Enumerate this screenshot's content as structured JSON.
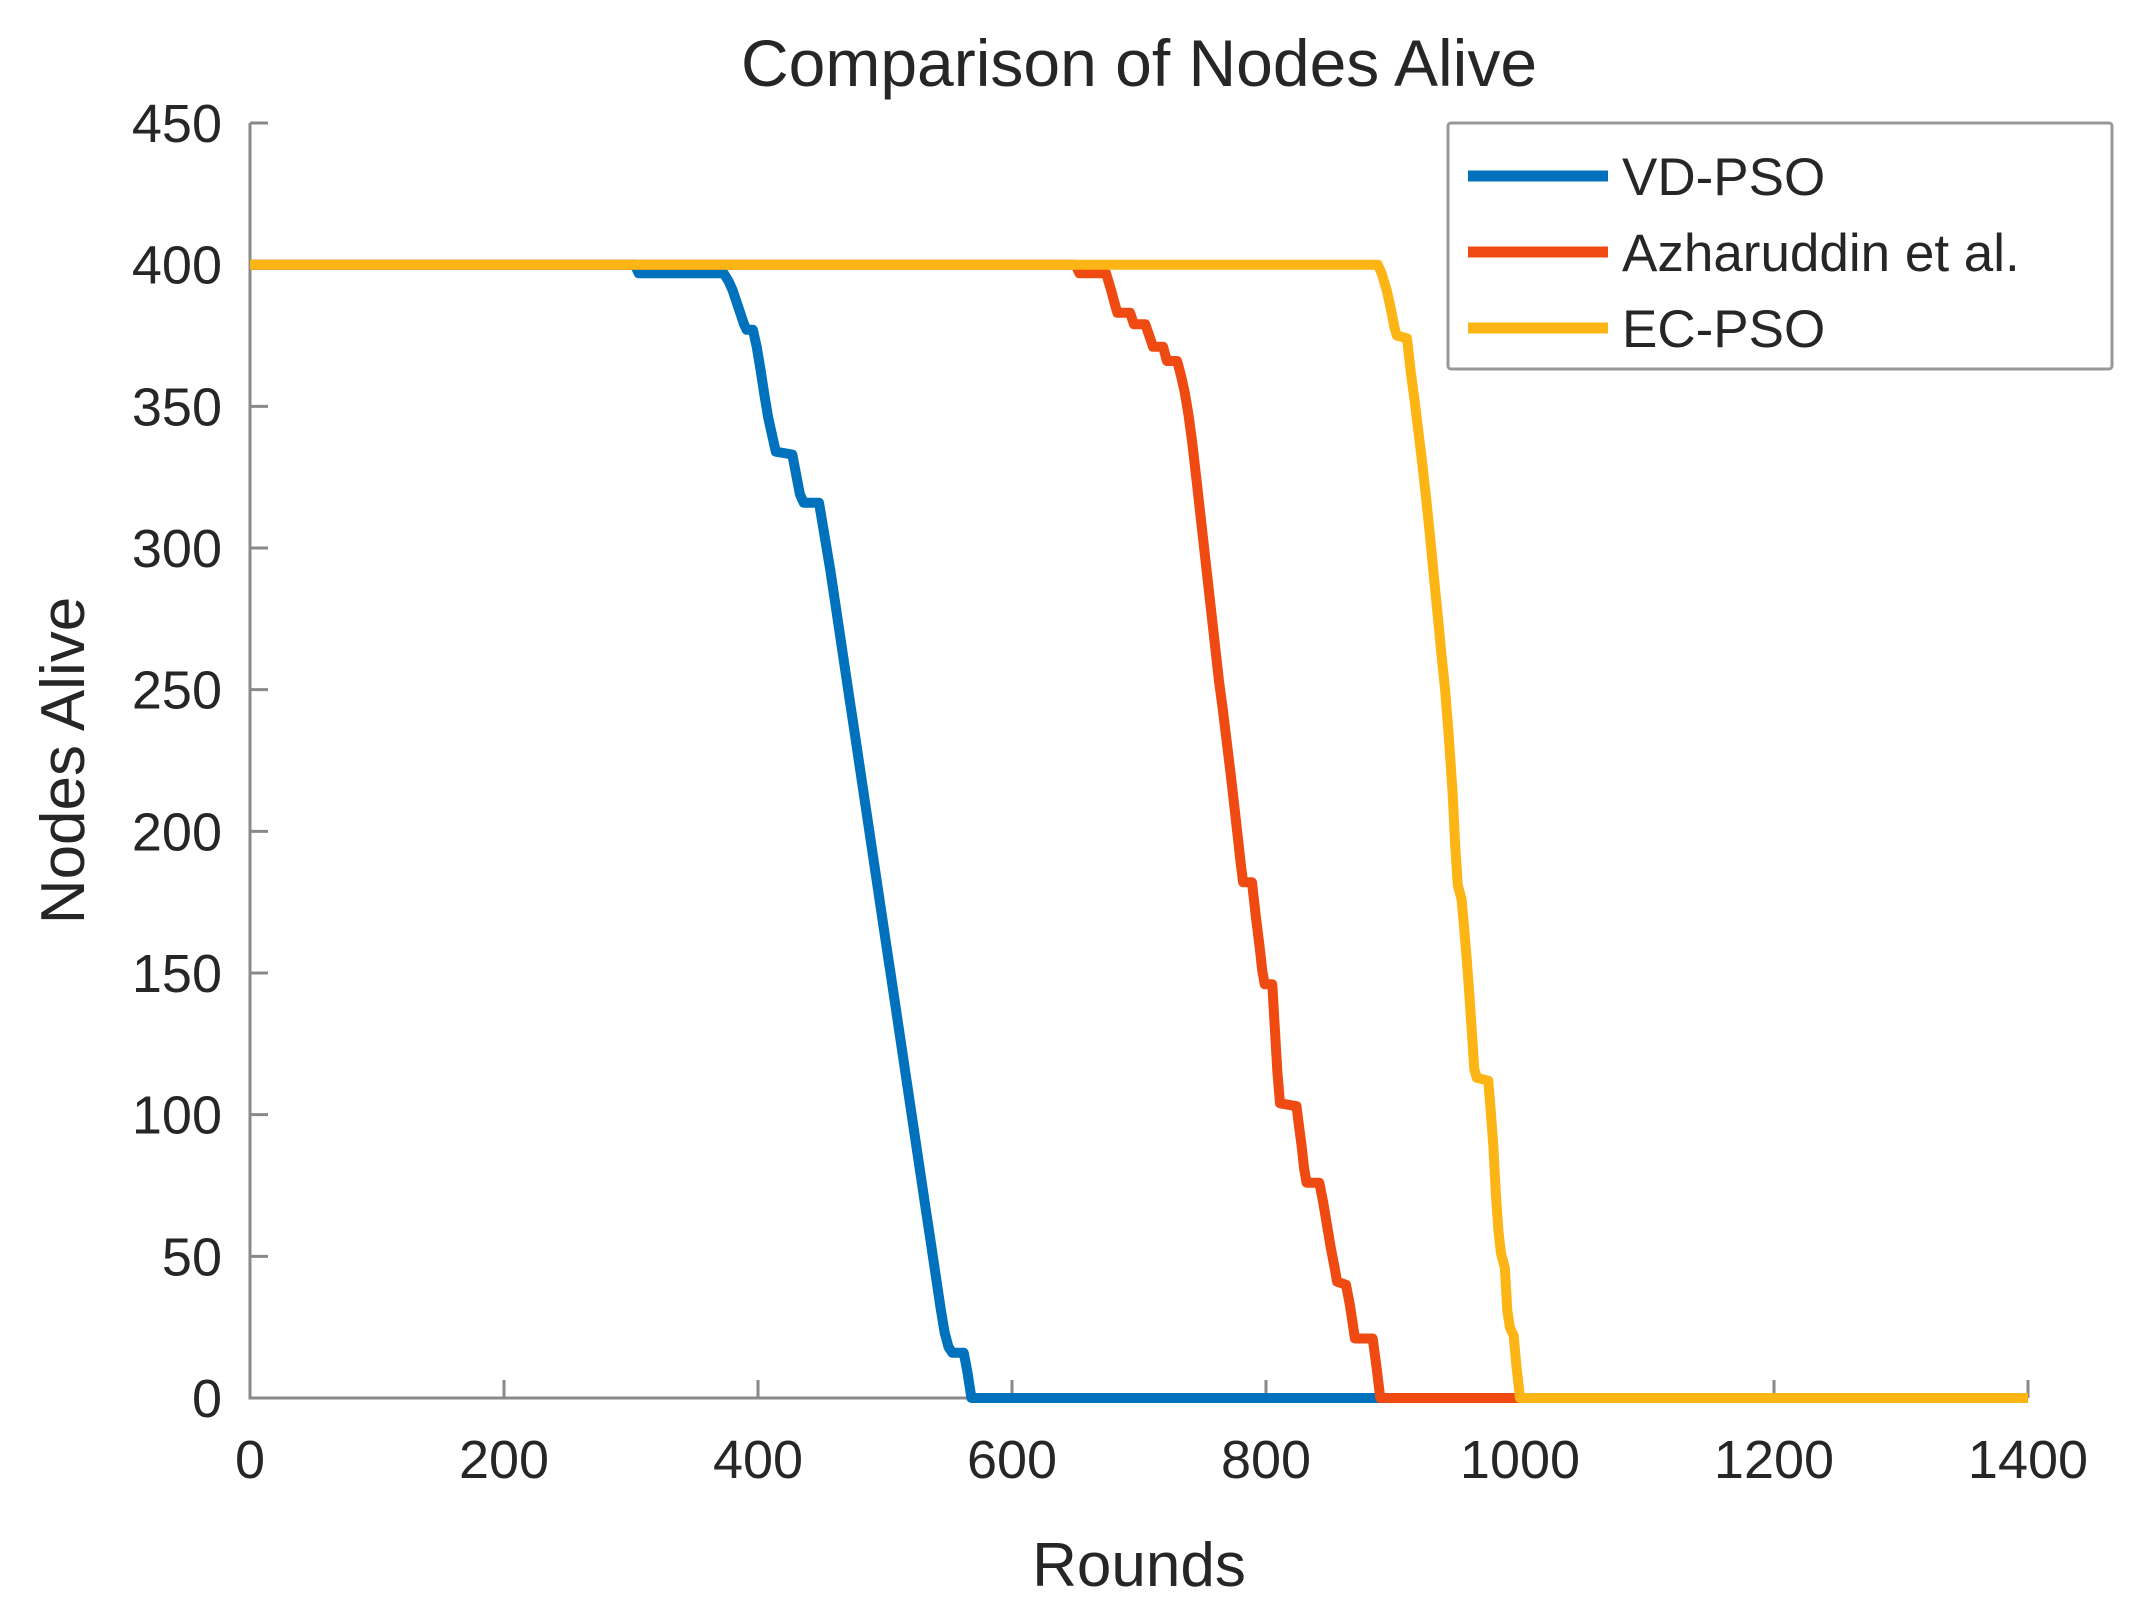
{
  "figure": {
    "background": "#ffffff",
    "axis_color": "#898989",
    "text_color": "#262626",
    "legend_border_color": "#989898"
  },
  "chart_data": {
    "type": "line",
    "title": "Comparison of Nodes Alive",
    "xlabel": "Rounds",
    "ylabel": "Nodes Alive",
    "xlim": [
      0,
      1400
    ],
    "ylim": [
      0,
      450
    ],
    "xticks": [
      0,
      200,
      400,
      600,
      800,
      1000,
      1200,
      1400
    ],
    "yticks": [
      0,
      50,
      100,
      150,
      200,
      250,
      300,
      350,
      400,
      450
    ],
    "grid": false,
    "legend_position": "top-right",
    "series": [
      {
        "name": "VD-PSO",
        "color": "#0072BD",
        "points": [
          [
            0,
            400
          ],
          [
            303,
            400
          ],
          [
            306,
            397
          ],
          [
            373,
            397
          ],
          [
            377,
            394
          ],
          [
            380,
            391
          ],
          [
            383,
            387
          ],
          [
            386,
            383
          ],
          [
            389,
            379
          ],
          [
            391,
            377
          ],
          [
            396,
            377
          ],
          [
            399,
            371
          ],
          [
            402,
            363
          ],
          [
            405,
            354
          ],
          [
            408,
            346
          ],
          [
            411,
            340
          ],
          [
            414,
            334
          ],
          [
            427,
            333
          ],
          [
            430,
            326
          ],
          [
            433,
            319
          ],
          [
            436,
            316
          ],
          [
            448,
            316
          ],
          [
            451,
            308
          ],
          [
            454,
            300
          ],
          [
            457,
            292
          ],
          [
            460,
            283
          ],
          [
            463,
            274
          ],
          [
            466,
            265
          ],
          [
            469,
            256
          ],
          [
            472,
            247
          ],
          [
            475,
            238
          ],
          [
            478,
            229
          ],
          [
            481,
            220
          ],
          [
            484,
            211
          ],
          [
            487,
            202
          ],
          [
            490,
            193
          ],
          [
            493,
            184
          ],
          [
            496,
            175
          ],
          [
            499,
            166
          ],
          [
            502,
            157
          ],
          [
            505,
            148
          ],
          [
            508,
            139
          ],
          [
            511,
            130
          ],
          [
            514,
            121
          ],
          [
            517,
            112
          ],
          [
            520,
            103
          ],
          [
            523,
            94
          ],
          [
            526,
            85
          ],
          [
            529,
            76
          ],
          [
            532,
            67
          ],
          [
            535,
            58
          ],
          [
            538,
            49
          ],
          [
            541,
            40
          ],
          [
            544,
            31
          ],
          [
            547,
            23
          ],
          [
            550,
            18
          ],
          [
            553,
            16
          ],
          [
            562,
            16
          ],
          [
            565,
            9
          ],
          [
            568,
            0
          ],
          [
            1400,
            0
          ]
        ]
      },
      {
        "name": "Azharuddin et al.",
        "color": "#EF4A12",
        "points": [
          [
            0,
            400
          ],
          [
            650,
            400
          ],
          [
            653,
            397
          ],
          [
            674,
            397
          ],
          [
            678,
            391
          ],
          [
            681,
            386
          ],
          [
            683,
            383
          ],
          [
            693,
            383
          ],
          [
            696,
            379
          ],
          [
            705,
            379
          ],
          [
            708,
            375
          ],
          [
            711,
            371
          ],
          [
            719,
            371
          ],
          [
            722,
            366
          ],
          [
            730,
            366
          ],
          [
            733,
            361
          ],
          [
            736,
            355
          ],
          [
            739,
            347
          ],
          [
            742,
            337
          ],
          [
            745,
            325
          ],
          [
            748,
            313
          ],
          [
            751,
            301
          ],
          [
            754,
            289
          ],
          [
            757,
            277
          ],
          [
            760,
            265
          ],
          [
            763,
            253
          ],
          [
            766,
            243
          ],
          [
            769,
            232
          ],
          [
            772,
            221
          ],
          [
            775,
            209
          ],
          [
            778,
            197
          ],
          [
            780,
            189
          ],
          [
            782,
            182
          ],
          [
            789,
            182
          ],
          [
            792,
            170
          ],
          [
            795,
            159
          ],
          [
            797,
            151
          ],
          [
            799,
            146
          ],
          [
            805,
            146
          ],
          [
            807,
            130
          ],
          [
            809,
            115
          ],
          [
            811,
            104
          ],
          [
            824,
            103
          ],
          [
            826,
            96
          ],
          [
            828,
            89
          ],
          [
            830,
            81
          ],
          [
            832,
            76
          ],
          [
            842,
            76
          ],
          [
            845,
            69
          ],
          [
            848,
            61
          ],
          [
            851,
            53
          ],
          [
            854,
            46
          ],
          [
            856,
            41
          ],
          [
            863,
            40
          ],
          [
            866,
            33
          ],
          [
            868,
            27
          ],
          [
            870,
            21
          ],
          [
            884,
            21
          ],
          [
            887,
            11
          ],
          [
            890,
            0
          ],
          [
            1400,
            0
          ]
        ]
      },
      {
        "name": "EC-PSO",
        "color": "#FDB515",
        "points": [
          [
            0,
            400
          ],
          [
            888,
            400
          ],
          [
            891,
            397
          ],
          [
            895,
            391
          ],
          [
            898,
            385
          ],
          [
            901,
            378
          ],
          [
            903,
            375
          ],
          [
            911,
            374
          ],
          [
            914,
            362
          ],
          [
            917,
            352
          ],
          [
            920,
            341
          ],
          [
            923,
            330
          ],
          [
            926,
            318
          ],
          [
            929,
            305
          ],
          [
            932,
            291
          ],
          [
            935,
            277
          ],
          [
            938,
            263
          ],
          [
            941,
            250
          ],
          [
            944,
            233
          ],
          [
            947,
            213
          ],
          [
            949,
            195
          ],
          [
            951,
            181
          ],
          [
            954,
            176
          ],
          [
            956,
            166
          ],
          [
            958,
            155
          ],
          [
            960,
            143
          ],
          [
            962,
            130
          ],
          [
            964,
            116
          ],
          [
            966,
            113
          ],
          [
            975,
            112
          ],
          [
            977,
            101
          ],
          [
            979,
            89
          ],
          [
            981,
            72
          ],
          [
            983,
            59
          ],
          [
            985,
            51
          ],
          [
            988,
            46
          ],
          [
            990,
            31
          ],
          [
            992,
            25
          ],
          [
            995,
            22
          ],
          [
            997,
            12
          ],
          [
            1000,
            0
          ],
          [
            1400,
            0
          ]
        ]
      }
    ]
  }
}
